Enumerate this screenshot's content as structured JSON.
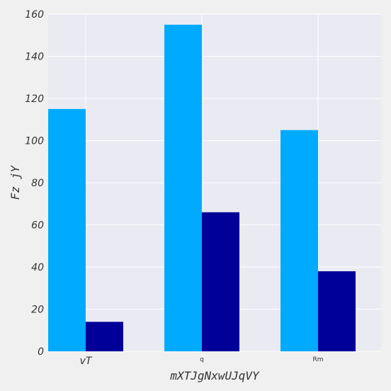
{
  "chart_data": {
    "type": "bar",
    "categories": [
      "vT",
      "q",
      "Rm"
    ],
    "series": [
      {
        "values": [
          115,
          155,
          105
        ],
        "color": "#00aaff"
      },
      {
        "values": [
          14,
          66,
          38
        ],
        "color": "#000099"
      }
    ],
    "xlabel": "mXTJgNxwUJqVY",
    "ylabel": "Fz jY",
    "ylim": [
      0,
      160
    ],
    "yticks": [
      0,
      20,
      40,
      60,
      80,
      100,
      120,
      140,
      160
    ],
    "grid": true,
    "legend": "none"
  },
  "colors": {
    "plot_background": "#eaeaf2",
    "figure_background": "#f0f0f0",
    "grid": "#ffffff"
  }
}
